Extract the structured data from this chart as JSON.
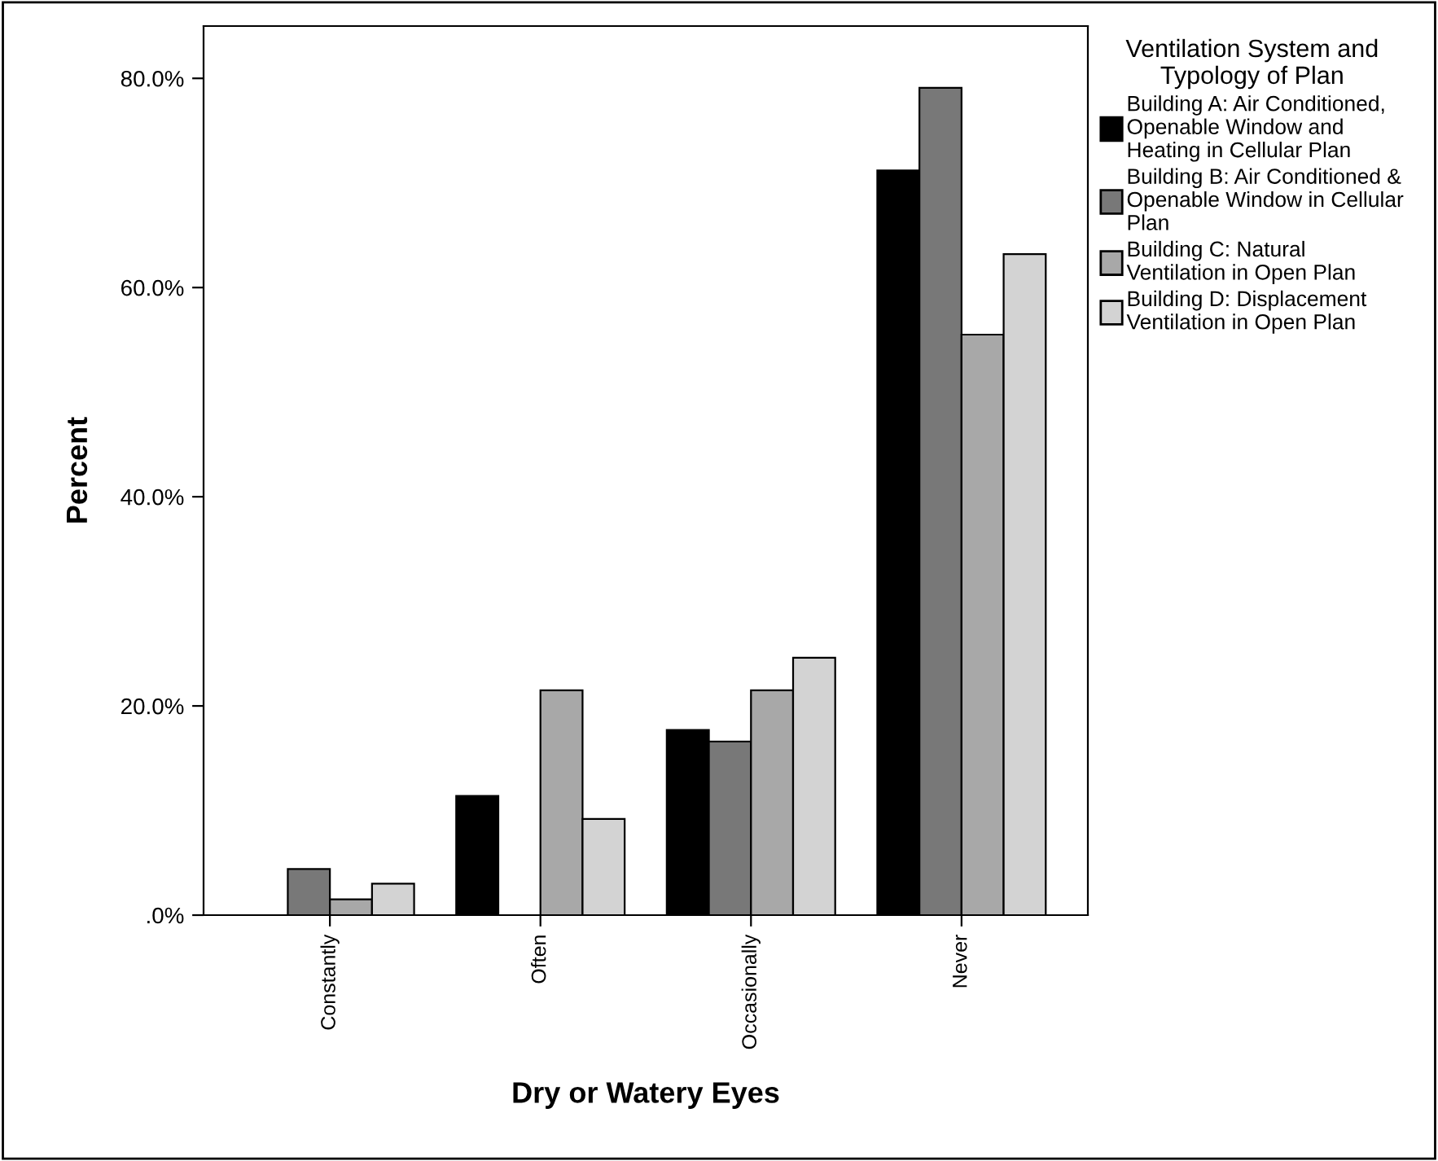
{
  "chart_data": {
    "type": "bar",
    "xlabel": "Dry or Watery Eyes",
    "ylabel": "Percent",
    "legend_title": "Ventilation System and\nTypology of Plan",
    "categories": [
      "Constantly",
      "Often",
      "Occasionally",
      "Never"
    ],
    "series": [
      {
        "name": "Building A: Air Conditioned,\nOpenable Window and\nHeating in Cellular Plan",
        "color": "#000000",
        "values": [
          0,
          11.4,
          17.7,
          71.2
        ]
      },
      {
        "name": "Building B: Air Conditioned &\nOpenable Window in Cellular\nPlan",
        "color": "#787878",
        "values": [
          4.4,
          0,
          16.6,
          79.1
        ]
      },
      {
        "name": "Building C: Natural\nVentilation in Open Plan",
        "color": "#a8a8a8",
        "values": [
          1.5,
          21.5,
          21.5,
          55.5
        ]
      },
      {
        "name": "Building D: Displacement\nVentilation in Open Plan",
        "color": "#d3d3d3",
        "values": [
          3.0,
          9.2,
          24.6,
          63.2
        ]
      }
    ],
    "ylim": [
      0,
      85
    ],
    "yticks": [
      {
        "value": 0,
        "label": ".0%"
      },
      {
        "value": 20,
        "label": "20.0%"
      },
      {
        "value": 40,
        "label": "40.0%"
      },
      {
        "value": 60,
        "label": "60.0%"
      },
      {
        "value": 80,
        "label": "80.0%"
      }
    ],
    "grid": false,
    "legend": "right"
  }
}
